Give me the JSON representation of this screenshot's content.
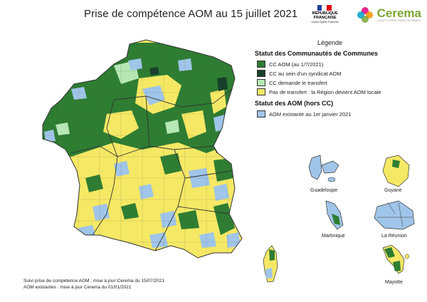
{
  "title": "Prise de compétence AOM au 15 juillet 2021",
  "logos": {
    "rf_lines": "RÉPUBLIQUE FRANÇAISE",
    "rf_motto": "Liberté Égalité Fraternité",
    "cerema_name": "Cerema",
    "cerema_sub": "CLIMAT & TERRITOIRES DE DEMAIN"
  },
  "legend": {
    "title": "Légende",
    "section1": "Statut des Communautés de Communes",
    "items1": [
      {
        "label": "CC AOM (au 1/7/2021)",
        "color": "#2e7d32"
      },
      {
        "label": "CC au sein d'un syndicat AOM",
        "color": "#17402a"
      },
      {
        "label": "CC demande le transfert",
        "color": "#b6e7b4"
      },
      {
        "label": "Pas de transfert : la Région devient AOM locale",
        "color": "#f5e864"
      }
    ],
    "section2": "Statut des AOM (hors CC)",
    "items2": [
      {
        "label": "AOM existante au 1er janvier 2021",
        "color": "#9fc5e8"
      }
    ]
  },
  "overseas": [
    "Guadeloupe",
    "Guyane",
    "Martinique",
    "La Réunion",
    "Mayotte"
  ],
  "footnotes": [
    "Suivi prise de compétence AOM : mise à jour Cerema du 15/07/2021",
    "AOM existantes : mise à jour Cerema du 01/01/2021"
  ],
  "colors": {
    "cc_aom": "#2e7d32",
    "cc_syndicat": "#17402a",
    "cc_demande": "#b6e7b4",
    "pas_transfert": "#f5e864",
    "aom_existante": "#9fc5e8",
    "border": "#333333"
  }
}
